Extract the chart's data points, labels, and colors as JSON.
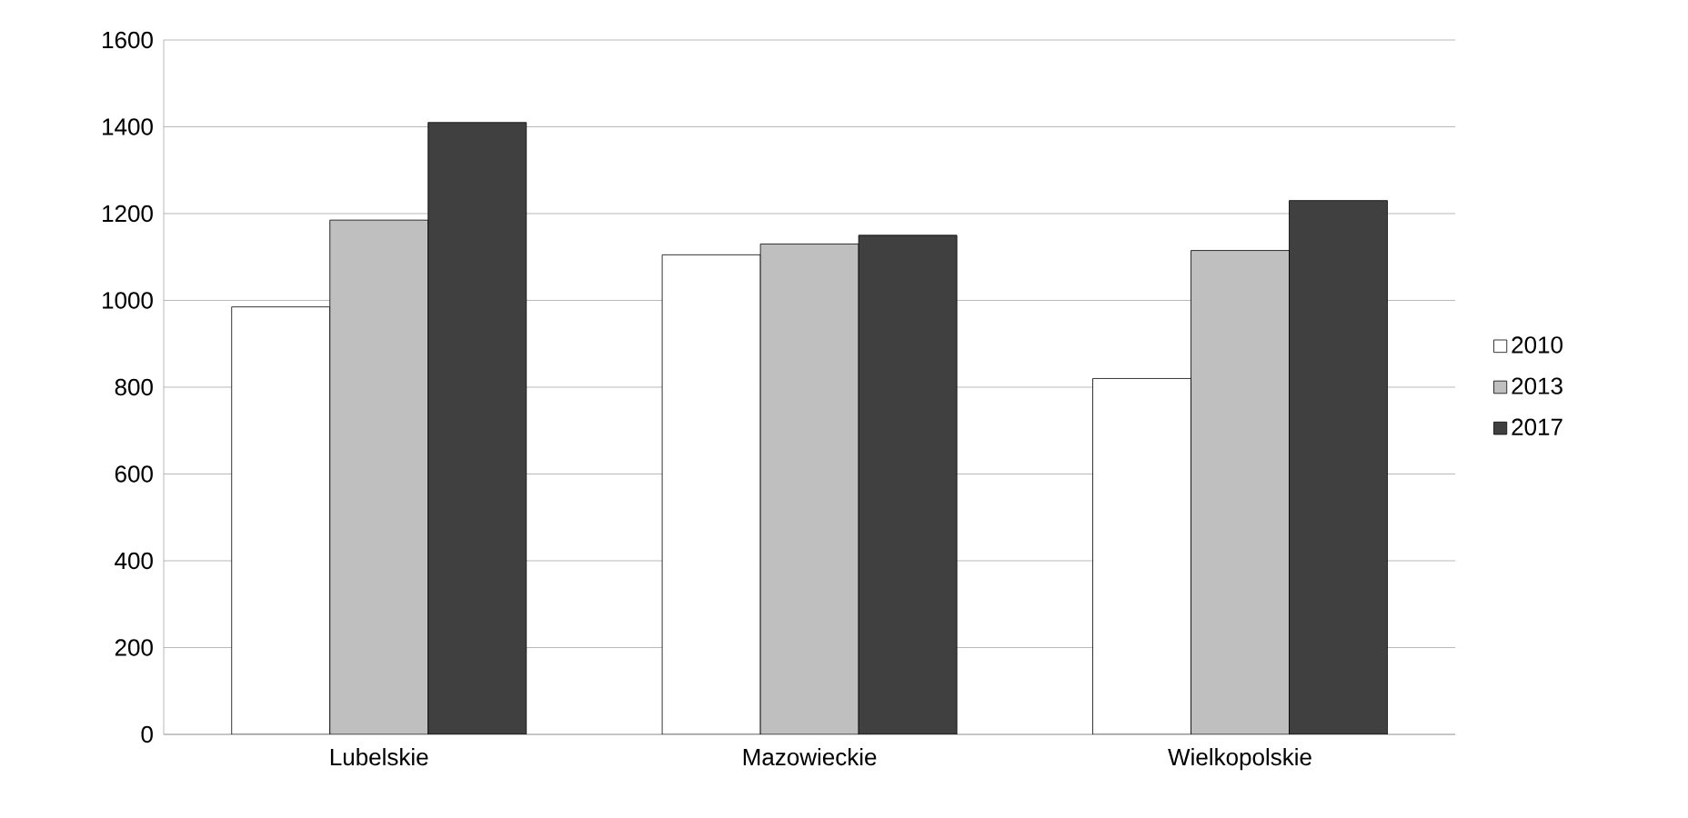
{
  "chart_data": {
    "type": "bar",
    "categories": [
      "Lubelskie",
      "Mazowieckie",
      "Wielkopolskie"
    ],
    "series": [
      {
        "name": "2010",
        "color": "#ffffff",
        "values": [
          985,
          1105,
          820
        ]
      },
      {
        "name": "2013",
        "color": "#bfbfbf",
        "values": [
          1185,
          1130,
          1115
        ]
      },
      {
        "name": "2017",
        "color": "#404040",
        "values": [
          1410,
          1150,
          1230
        ]
      }
    ],
    "ylim": [
      0,
      1600
    ],
    "yticks": [
      0,
      200,
      400,
      600,
      800,
      1000,
      1200,
      1400,
      1600
    ],
    "grid": "y",
    "legend": "right"
  }
}
